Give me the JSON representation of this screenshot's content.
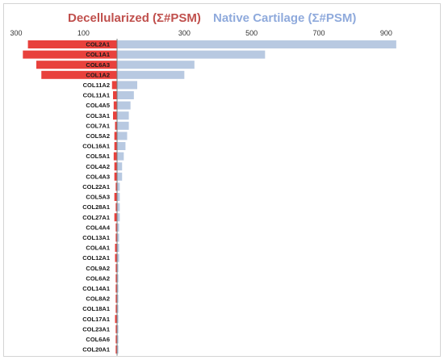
{
  "chart_data": {
    "type": "bar",
    "orientation": "horizontal-diverging",
    "categories": [
      "COL2A1",
      "COL1A1",
      "COL6A3",
      "COL1A2",
      "COL11A2",
      "COL11A1",
      "COL4A5",
      "COL3A1",
      "COL7A1",
      "COL5A2",
      "COL16A1",
      "COL5A1",
      "COL4A2",
      "COL4A3",
      "COL22A1",
      "COL5A3",
      "COL28A1",
      "COL27A1",
      "COL4A4",
      "COL13A1",
      "COL4A1",
      "COL12A1",
      "COL9A2",
      "COL6A2",
      "COL14A1",
      "COL8A2",
      "COL18A1",
      "COL17A1",
      "COL23A1",
      "COL6A6",
      "COL20A1"
    ],
    "series": [
      {
        "name": "Decellularized (Σ#PSM)",
        "color": "#e8413c",
        "direction": "left",
        "values": [
          265,
          280,
          240,
          225,
          15,
          12,
          10,
          12,
          6,
          8,
          8,
          10,
          8,
          8,
          4,
          8,
          4,
          8,
          4,
          4,
          6,
          6,
          4,
          4,
          4,
          4,
          4,
          6,
          4,
          4,
          4
        ]
      },
      {
        "name": "Native Cartilage (Σ#PSM)",
        "color": "#b8c9e1",
        "direction": "right",
        "values": [
          830,
          440,
          230,
          200,
          60,
          50,
          40,
          35,
          35,
          30,
          25,
          20,
          15,
          15,
          8,
          8,
          8,
          8,
          6,
          6,
          6,
          6,
          4,
          4,
          4,
          4,
          4,
          4,
          4,
          4,
          4
        ]
      }
    ],
    "ticks": {
      "left": {
        "values": [
          300,
          100
        ],
        "labels": [
          "300",
          "100"
        ]
      },
      "right": {
        "values": [
          300,
          500,
          700,
          900
        ],
        "labels": [
          "300",
          "500",
          "700",
          "900"
        ]
      }
    },
    "legend_placement": "top",
    "grid": false
  }
}
